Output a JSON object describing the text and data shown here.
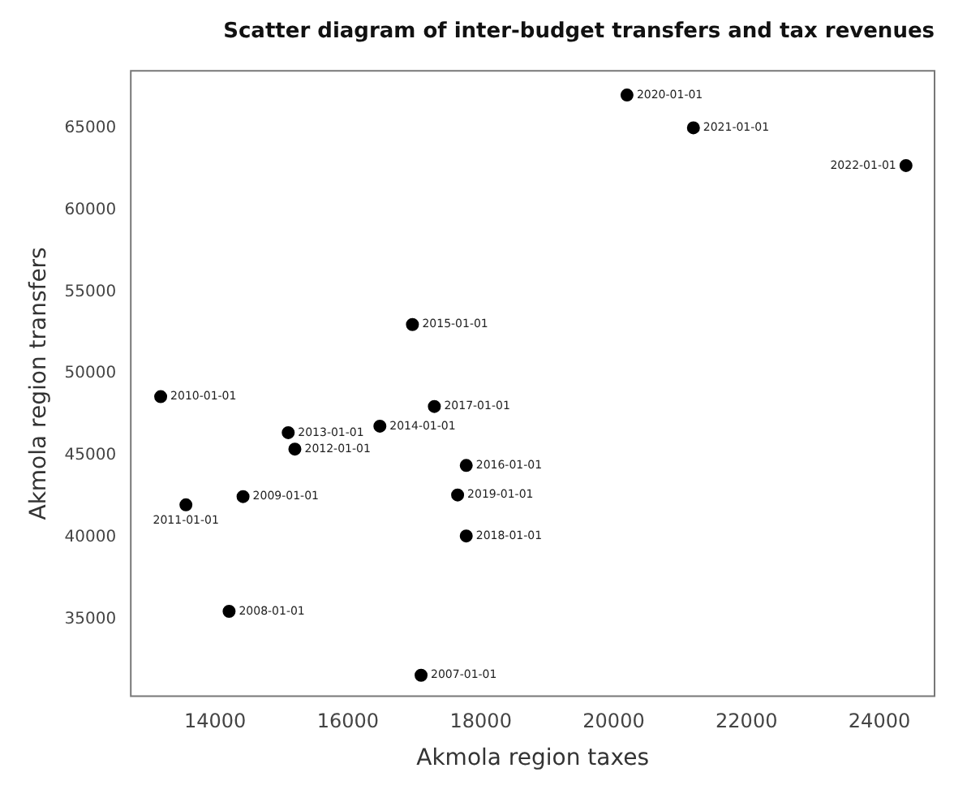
{
  "chart_data": {
    "type": "scatter",
    "title": "Scatter diagram of inter-budget transfers and tax revenues",
    "xlabel": "Akmola region taxes",
    "ylabel": "Akmola region transfers",
    "x": [
      17100,
      14210,
      14420,
      13180,
      13560,
      15200,
      15100,
      16480,
      16970,
      17780,
      17300,
      17780,
      17650,
      20200,
      21200,
      24400
    ],
    "series": [
      {
        "color": "#000000",
        "values": [
          31600,
          35500,
          42500,
          48600,
          42000,
          45400,
          46400,
          46800,
          53000,
          44400,
          48000,
          40100,
          42600,
          67000,
          65000,
          62700
        ]
      }
    ],
    "annotations": [
      {
        "text": "2007-01-01",
        "x": 17100,
        "y": 31600
      },
      {
        "text": "2008-01-01",
        "x": 14210,
        "y": 35500
      },
      {
        "text": "2009-01-01",
        "x": 14420,
        "y": 42500
      },
      {
        "text": "2010-01-01",
        "x": 13180,
        "y": 48600
      },
      {
        "text": "2011-01-01",
        "x": 13560,
        "y": 42000
      },
      {
        "text": "2012-01-01",
        "x": 15200,
        "y": 45400
      },
      {
        "text": "2013-01-01",
        "x": 15100,
        "y": 46400
      },
      {
        "text": "2014-01-01",
        "x": 16480,
        "y": 46800
      },
      {
        "text": "2015-01-01",
        "x": 16970,
        "y": 53000
      },
      {
        "text": "2016-01-01",
        "x": 17780,
        "y": 44400
      },
      {
        "text": "2017-01-01",
        "x": 17300,
        "y": 48000
      },
      {
        "text": "2018-01-01",
        "x": 17780,
        "y": 40100
      },
      {
        "text": "2019-01-01",
        "x": 17650,
        "y": 42600
      },
      {
        "text": "2020-01-01",
        "x": 20200,
        "y": 67000
      },
      {
        "text": "2021-01-01",
        "x": 21200,
        "y": 65000
      },
      {
        "text": "2022-01-01",
        "x": 24400,
        "y": 62700
      }
    ],
    "xlim": [
      12730,
      24830
    ],
    "xticks": [
      14000,
      16000,
      18000,
      20000,
      22000,
      24000
    ],
    "ylim": [
      30320,
      68480
    ],
    "yticks": [
      35000,
      40000,
      45000,
      50000,
      55000,
      60000,
      65000
    ],
    "marker": "circle",
    "grid": false,
    "legend": false
  }
}
